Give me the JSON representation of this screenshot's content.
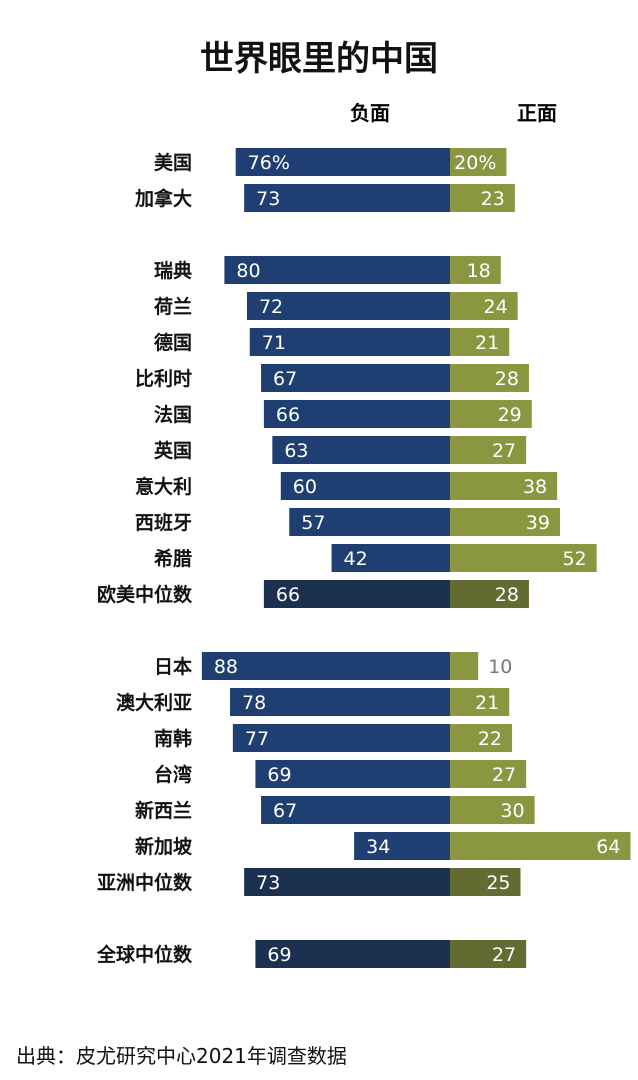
{
  "chart_data": {
    "type": "bar",
    "title": "世界眼里的中国",
    "series": [
      {
        "name": "负面",
        "color": "#1f3e72",
        "median_color": "#1c3150"
      },
      {
        "name": "正面",
        "color": "#8b9641",
        "median_color": "#626b30"
      }
    ],
    "groups": [
      {
        "rows": [
          {
            "label": "美国",
            "neg": 76,
            "pos": 20,
            "neg_text": "76%",
            "pos_text": "20%"
          },
          {
            "label": "加拿大",
            "neg": 73,
            "pos": 23,
            "neg_text": "73",
            "pos_text": "23"
          }
        ]
      },
      {
        "rows": [
          {
            "label": "瑞典",
            "neg": 80,
            "pos": 18,
            "neg_text": "80",
            "pos_text": "18"
          },
          {
            "label": "荷兰",
            "neg": 72,
            "pos": 24,
            "neg_text": "72",
            "pos_text": "24"
          },
          {
            "label": "德国",
            "neg": 71,
            "pos": 21,
            "neg_text": "71",
            "pos_text": "21"
          },
          {
            "label": "比利时",
            "neg": 67,
            "pos": 28,
            "neg_text": "67",
            "pos_text": "28"
          },
          {
            "label": "法国",
            "neg": 66,
            "pos": 29,
            "neg_text": "66",
            "pos_text": "29"
          },
          {
            "label": "英国",
            "neg": 63,
            "pos": 27,
            "neg_text": "63",
            "pos_text": "27"
          },
          {
            "label": "意大利",
            "neg": 60,
            "pos": 38,
            "neg_text": "60",
            "pos_text": "38"
          },
          {
            "label": "西班牙",
            "neg": 57,
            "pos": 39,
            "neg_text": "57",
            "pos_text": "39"
          },
          {
            "label": "希腊",
            "neg": 42,
            "pos": 52,
            "neg_text": "42",
            "pos_text": "52"
          },
          {
            "label": "欧美中位数",
            "neg": 66,
            "pos": 28,
            "neg_text": "66",
            "pos_text": "28",
            "median": true
          }
        ]
      },
      {
        "rows": [
          {
            "label": "日本",
            "neg": 88,
            "pos": 10,
            "neg_text": "88",
            "pos_text": "10"
          },
          {
            "label": "澳大利亚",
            "neg": 78,
            "pos": 21,
            "neg_text": "78",
            "pos_text": "21"
          },
          {
            "label": "南韩",
            "neg": 77,
            "pos": 22,
            "neg_text": "77",
            "pos_text": "22"
          },
          {
            "label": "台湾",
            "neg": 69,
            "pos": 27,
            "neg_text": "69",
            "pos_text": "27"
          },
          {
            "label": "新西兰",
            "neg": 67,
            "pos": 30,
            "neg_text": "67",
            "pos_text": "30"
          },
          {
            "label": "新加坡",
            "neg": 34,
            "pos": 64,
            "neg_text": "34",
            "pos_text": "64"
          },
          {
            "label": "亚洲中位数",
            "neg": 73,
            "pos": 25,
            "neg_text": "73",
            "pos_text": "25",
            "median": true
          }
        ]
      },
      {
        "rows": [
          {
            "label": "全球中位数",
            "neg": 69,
            "pos": 27,
            "neg_text": "69",
            "pos_text": "27",
            "median": true
          }
        ]
      }
    ]
  },
  "source": "出典：皮尤研究中心2021年调查数据"
}
